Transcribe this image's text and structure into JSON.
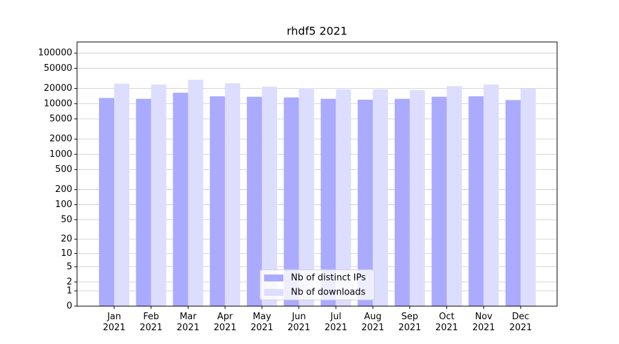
{
  "chart_data": {
    "type": "bar",
    "title": "rhdf5 2021",
    "categories": [
      "Jan\n2021",
      "Feb\n2021",
      "Mar\n2021",
      "Apr\n2021",
      "May\n2021",
      "Jun\n2021",
      "Jul\n2021",
      "Aug\n2021",
      "Sep\n2021",
      "Oct\n2021",
      "Nov\n2021",
      "Dec\n2021"
    ],
    "series": [
      {
        "name": "Nb of distinct IPs",
        "color": "#aaaaff",
        "values": [
          13000,
          12500,
          16500,
          14000,
          13700,
          13300,
          12500,
          12000,
          12500,
          13700,
          14000,
          11800
        ]
      },
      {
        "name": "Nb of downloads",
        "color": "#ddddff",
        "values": [
          25000,
          24000,
          29700,
          25400,
          21800,
          20300,
          19200,
          19200,
          18500,
          22200,
          24000,
          19800
        ]
      }
    ],
    "yscale": "log1p",
    "ylim": [
      0,
      166000
    ],
    "yticks": [
      0,
      1,
      2,
      5,
      10,
      20,
      50,
      100,
      200,
      500,
      1000,
      2000,
      5000,
      10000,
      20000,
      50000,
      100000
    ],
    "grid": true,
    "legend": "lower center"
  }
}
